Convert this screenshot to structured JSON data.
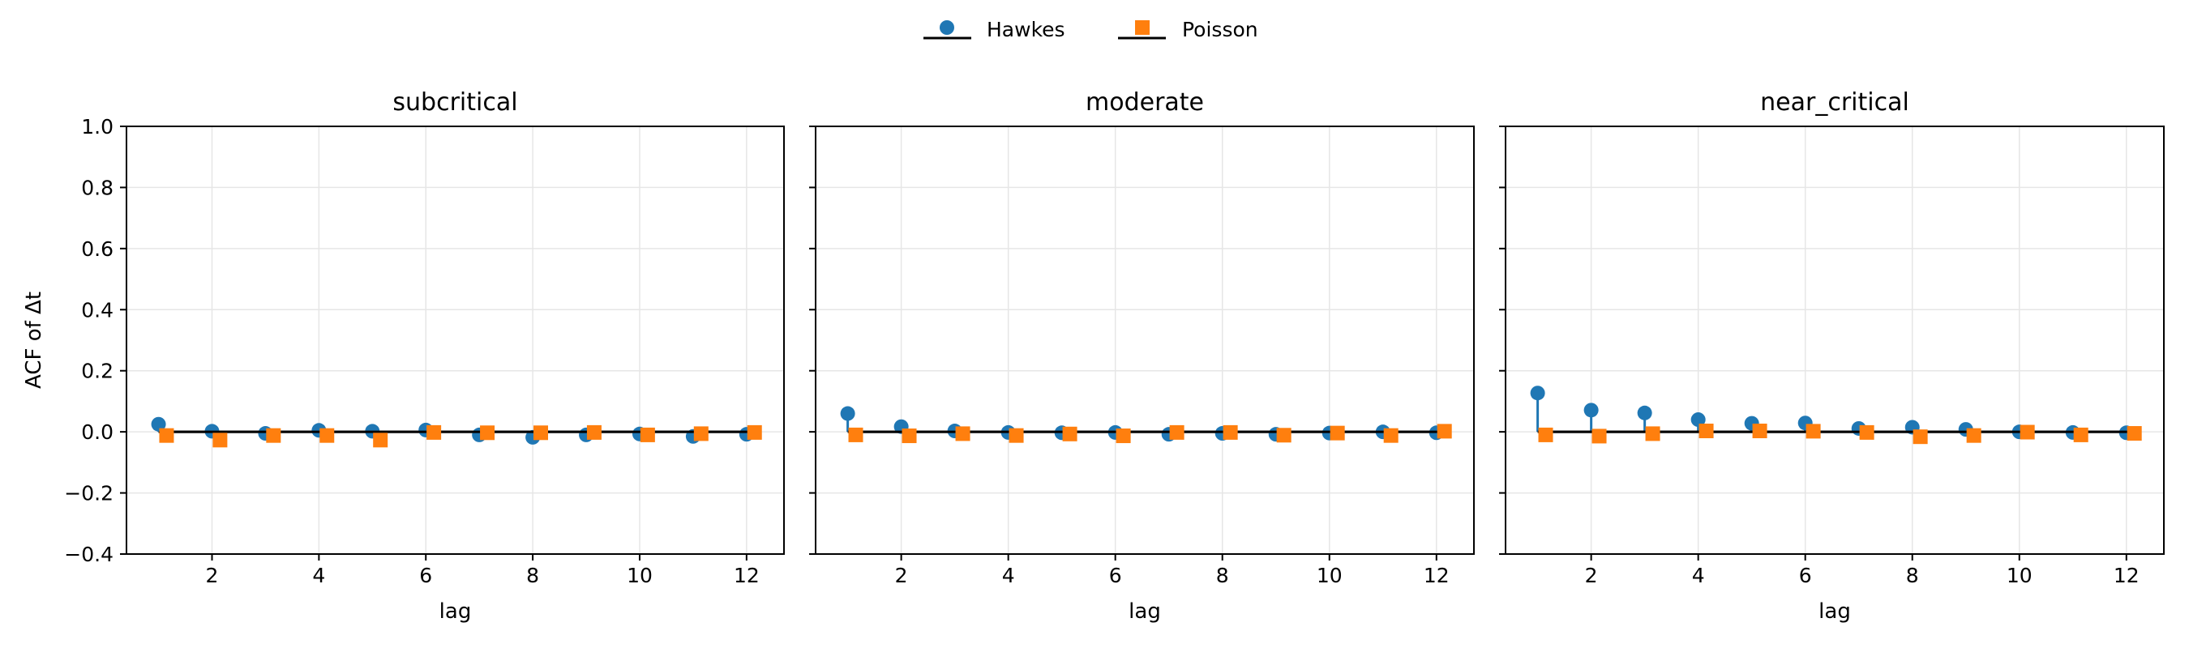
{
  "legend": {
    "placement": "top-center",
    "entries": [
      {
        "label": "Hawkes",
        "color": "#1f77b4",
        "marker": "circle"
      },
      {
        "label": "Poisson",
        "color": "#ff7f0e",
        "marker": "square"
      }
    ]
  },
  "chart_data": [
    {
      "type": "stem",
      "title": "subcritical",
      "xlabel": "lag",
      "ylabel": "ACF of Δt",
      "xlim": [
        0.4,
        12.7
      ],
      "ylim": [
        -0.4,
        1.0
      ],
      "xticks": [
        2,
        4,
        6,
        8,
        10,
        12
      ],
      "yticks": [
        -0.4,
        -0.2,
        0.0,
        0.2,
        0.4,
        0.6,
        0.8,
        1.0
      ],
      "grid": true,
      "series": [
        {
          "name": "Hawkes",
          "x": [
            1,
            2,
            3,
            4,
            5,
            6,
            7,
            8,
            9,
            10,
            11,
            12
          ],
          "values": [
            0.025,
            0.002,
            -0.005,
            0.005,
            0.002,
            0.006,
            -0.01,
            -0.018,
            -0.01,
            -0.007,
            -0.015,
            -0.008
          ]
        },
        {
          "name": "Poisson",
          "x": [
            1.15,
            2.15,
            3.15,
            4.15,
            5.15,
            6.15,
            7.15,
            8.15,
            9.15,
            10.15,
            11.15,
            12.15
          ],
          "values": [
            -0.012,
            -0.027,
            -0.012,
            -0.012,
            -0.027,
            -0.002,
            -0.003,
            -0.003,
            -0.002,
            -0.01,
            -0.006,
            -0.002
          ]
        }
      ]
    },
    {
      "type": "stem",
      "title": "moderate",
      "xlabel": "lag",
      "ylabel": "",
      "xlim": [
        0.4,
        12.7
      ],
      "ylim": [
        -0.4,
        1.0
      ],
      "xticks": [
        2,
        4,
        6,
        8,
        10,
        12
      ],
      "yticks": [
        -0.4,
        -0.2,
        0.0,
        0.2,
        0.4,
        0.6,
        0.8,
        1.0
      ],
      "grid": true,
      "series": [
        {
          "name": "Hawkes",
          "x": [
            1,
            2,
            3,
            4,
            5,
            6,
            7,
            8,
            9,
            10,
            11,
            12
          ],
          "values": [
            0.06,
            0.017,
            0.003,
            -0.002,
            -0.003,
            -0.002,
            -0.008,
            -0.005,
            -0.008,
            -0.004,
            0.0,
            -0.003
          ]
        },
        {
          "name": "Poisson",
          "x": [
            1.15,
            2.15,
            3.15,
            4.15,
            5.15,
            6.15,
            7.15,
            8.15,
            9.15,
            10.15,
            11.15,
            12.15
          ],
          "values": [
            -0.01,
            -0.013,
            -0.006,
            -0.012,
            -0.007,
            -0.013,
            -0.002,
            -0.002,
            -0.011,
            -0.004,
            -0.012,
            0.002
          ]
        }
      ]
    },
    {
      "type": "stem",
      "title": "near_critical",
      "xlabel": "lag",
      "ylabel": "",
      "xlim": [
        0.4,
        12.7
      ],
      "ylim": [
        -0.4,
        1.0
      ],
      "xticks": [
        2,
        4,
        6,
        8,
        10,
        12
      ],
      "yticks": [
        -0.4,
        -0.2,
        0.0,
        0.2,
        0.4,
        0.6,
        0.8,
        1.0
      ],
      "grid": true,
      "series": [
        {
          "name": "Hawkes",
          "x": [
            1,
            2,
            3,
            4,
            5,
            6,
            7,
            8,
            9,
            10,
            11,
            12
          ],
          "values": [
            0.127,
            0.071,
            0.062,
            0.04,
            0.028,
            0.029,
            0.011,
            0.015,
            0.008,
            0.0,
            -0.002,
            -0.003
          ]
        },
        {
          "name": "Poisson",
          "x": [
            1.15,
            2.15,
            3.15,
            4.15,
            5.15,
            6.15,
            7.15,
            8.15,
            9.15,
            10.15,
            11.15,
            12.15
          ],
          "values": [
            -0.01,
            -0.014,
            -0.006,
            0.003,
            0.003,
            0.002,
            -0.002,
            -0.016,
            -0.012,
            -0.001,
            -0.01,
            -0.005
          ]
        }
      ]
    }
  ]
}
